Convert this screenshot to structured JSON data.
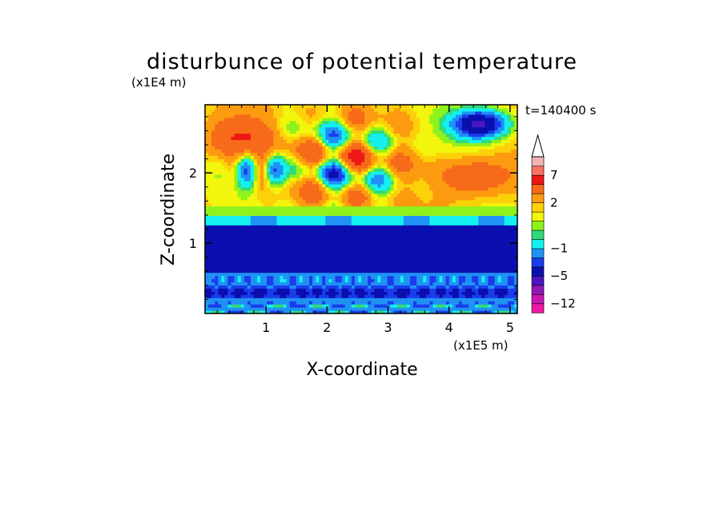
{
  "chart_data": {
    "type": "heatmap",
    "title": "disturbunce of potential temperature",
    "time_label": "t=140400 s",
    "xlabel": "X-coordinate",
    "ylabel": "Z-coordinate",
    "x_scale_label": "(x1E5 m)",
    "y_scale_label": "(x1E4 m)",
    "xlim": [
      0,
      5.12
    ],
    "ylim": [
      0,
      2.97
    ],
    "x_ticks": [
      1,
      2,
      3,
      4,
      5
    ],
    "y_ticks": [
      1,
      2
    ],
    "colorbar": {
      "levels_shown": [
        "7",
        "2",
        "−1",
        "−5",
        "−12"
      ],
      "level_values": [
        7,
        2,
        -1,
        -5,
        -12
      ],
      "extend": "max",
      "bins": [
        {
          "lower": -13,
          "upper": -12,
          "color": "#ee1aa6"
        },
        {
          "lower": -12,
          "upper": -10,
          "color": "#c815b4"
        },
        {
          "lower": -10,
          "upper": -7,
          "color": "#8f19b3"
        },
        {
          "lower": -7,
          "upper": -5,
          "color": "#4a17c2"
        },
        {
          "lower": -5,
          "upper": -3,
          "color": "#0a0fae"
        },
        {
          "lower": -3,
          "upper": -2,
          "color": "#1a3cec"
        },
        {
          "lower": -2,
          "upper": -1,
          "color": "#1f92f4"
        },
        {
          "lower": -1,
          "upper": 0,
          "color": "#14f0f0"
        },
        {
          "lower": 0,
          "upper": 0.5,
          "color": "#32d97b"
        },
        {
          "lower": 0.5,
          "upper": 1,
          "color": "#8ef21d"
        },
        {
          "lower": 1,
          "upper": 1.5,
          "color": "#f2f50c"
        },
        {
          "lower": 1.5,
          "upper": 2,
          "color": "#fcd10a"
        },
        {
          "lower": 2,
          "upper": 3,
          "color": "#fc9a10"
        },
        {
          "lower": 3,
          "upper": 5,
          "color": "#f76a1a"
        },
        {
          "lower": 5,
          "upper": 7,
          "color": "#ee1818"
        },
        {
          "lower": 7,
          "upper": 9,
          "color": "#f8705f"
        },
        {
          "lower": 9,
          "upper": 11,
          "color": "#f2b2b2"
        },
        {
          "lower": 11,
          "upper": 13,
          "color": "#ffffff"
        }
      ]
    },
    "features": [
      {
        "x": [
          0,
          5.12
        ],
        "z": [
          0.6,
          1.25
        ],
        "value": -4,
        "description": "dark blue cold layer"
      },
      {
        "x": [
          0,
          5.12
        ],
        "z": [
          0.0,
          0.55
        ],
        "value": -1.5,
        "description": "cyan / blue lower layer"
      },
      {
        "x": [
          0,
          5.12
        ],
        "z": [
          1.25,
          1.55
        ],
        "value": 0.7,
        "description": "green transition band"
      },
      {
        "x": [
          0.1,
          1.0
        ],
        "z": [
          2.3,
          2.8
        ],
        "value": 5,
        "description": "warm maximum upper left"
      },
      {
        "x": [
          4.0,
          5.0
        ],
        "z": [
          1.8,
          2.2
        ],
        "value": 5,
        "description": "warm maximum upper right"
      },
      {
        "x": [
          4.1,
          4.9
        ],
        "z": [
          2.5,
          2.9
        ],
        "value": -5,
        "description": "cold minimum upper right"
      },
      {
        "x": [
          1.6,
          3.0
        ],
        "z": [
          1.5,
          2.8
        ],
        "value": -3,
        "description": "gravity wave cells"
      }
    ]
  }
}
